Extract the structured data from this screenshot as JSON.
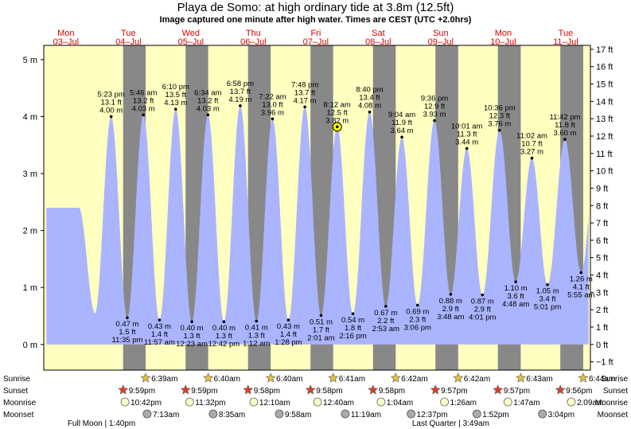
{
  "chart_data": {
    "type": "area",
    "title": "Playa de Somo: at high  ordinary tide at 3.8m (12.5ft)",
    "subtitle": "Image captured one minute after high water. Times are CEST (UTC +2.0hrs)",
    "colors": {
      "day": "#ffffc0",
      "night": "#888888",
      "tide": "#aab4ff",
      "day_label": "#e00000",
      "current_marker": "#ffff00"
    },
    "x_range_hours": [
      -8.5,
      201.5
    ],
    "y_left": {
      "unit": "m",
      "range": [
        -0.45,
        5.25
      ],
      "ticks": [
        0,
        1,
        2,
        3,
        4,
        5
      ],
      "labels": [
        "0 m",
        "1 m",
        "2 m",
        "3 m",
        "4 m",
        "5 m"
      ]
    },
    "y_right": {
      "unit": "ft",
      "ticks": [
        -1,
        0,
        1,
        2,
        3,
        4,
        5,
        6,
        7,
        8,
        9,
        10,
        11,
        12,
        13,
        14,
        15,
        16,
        17
      ],
      "labels": [
        "−1 ft",
        "0 ft",
        "1 ft",
        "2 ft",
        "3 ft",
        "4 ft",
        "5 ft",
        "6 ft",
        "7 ft",
        "8 ft",
        "9 ft",
        "10 ft",
        "11 ft",
        "12 ft",
        "13 ft",
        "14 ft",
        "15 ft",
        "16 ft",
        "17 ft"
      ]
    },
    "days": [
      {
        "name": "Mon",
        "date": "03–Jul",
        "h": 0
      },
      {
        "name": "Tue",
        "date": "04–Jul",
        "h": 24
      },
      {
        "name": "Wed",
        "date": "05–Jul",
        "h": 48
      },
      {
        "name": "Thu",
        "date": "06–Jul",
        "h": 72
      },
      {
        "name": "Fri",
        "date": "07–Jul",
        "h": 96
      },
      {
        "name": "Sat",
        "date": "08–Jul",
        "h": 120
      },
      {
        "name": "Sun",
        "date": "09–Jul",
        "h": 144
      },
      {
        "name": "Mon",
        "date": "10–Jul",
        "h": 168
      },
      {
        "name": "Tue",
        "date": "11–Jul",
        "h": 192
      }
    ],
    "tides": [
      {
        "type": "high",
        "h": 17.38,
        "time": "5:23 pm",
        "ft": "13.1 ft",
        "m": "4.00 m",
        "v": 4.0
      },
      {
        "type": "low",
        "h": 23.58,
        "time": "11:35 pm",
        "ft": "1.5 ft",
        "m": "0.47 m",
        "v": 0.47
      },
      {
        "type": "high",
        "h": 29.77,
        "time": "5:46 am",
        "ft": "13.2 ft",
        "m": "4.03 m",
        "v": 4.03
      },
      {
        "type": "low",
        "h": 35.95,
        "time": "11:57 am",
        "ft": "1.4 ft",
        "m": "0.43 m",
        "v": 0.43
      },
      {
        "type": "high",
        "h": 42.17,
        "time": "6:10 pm",
        "ft": "13.5 ft",
        "m": "4.13 m",
        "v": 4.13
      },
      {
        "type": "low",
        "h": 48.38,
        "time": "12:23 am",
        "ft": "1.3 ft",
        "m": "0.40 m",
        "v": 0.4
      },
      {
        "type": "high",
        "h": 54.57,
        "time": "6:34 am",
        "ft": "13.2 ft",
        "m": "4.03 m",
        "v": 4.03
      },
      {
        "type": "low",
        "h": 60.7,
        "time": "12:42 pm",
        "ft": "1.3 ft",
        "m": "0.40 m",
        "v": 0.4
      },
      {
        "type": "high",
        "h": 66.97,
        "time": "6:58 pm",
        "ft": "13.7 ft",
        "m": "4.19 m",
        "v": 4.19
      },
      {
        "type": "low",
        "h": 73.2,
        "time": "1:12 am",
        "ft": "1.3 ft",
        "m": "0.41 m",
        "v": 0.41
      },
      {
        "type": "high",
        "h": 79.37,
        "time": "7:22 am",
        "ft": "13.0 ft",
        "m": "3.96 m",
        "v": 3.96
      },
      {
        "type": "low",
        "h": 85.47,
        "time": "1:28 pm",
        "ft": "1.4 ft",
        "m": "0.43 m",
        "v": 0.43
      },
      {
        "type": "high",
        "h": 91.8,
        "time": "7:48 pm",
        "ft": "13.7 ft",
        "m": "4.17 m",
        "v": 4.17
      },
      {
        "type": "low",
        "h": 98.02,
        "time": "2:01 am",
        "ft": "1.7 ft",
        "m": "0.51 m",
        "v": 0.51
      },
      {
        "type": "high",
        "h": 104.2,
        "time": "8:12 am",
        "ft": "12.5 ft",
        "m": "3.82 m",
        "v": 3.82
      },
      {
        "type": "low",
        "h": 110.27,
        "time": "2:16 pm",
        "ft": "1.8 ft",
        "m": "0.54 m",
        "v": 0.54
      },
      {
        "type": "high",
        "h": 116.67,
        "time": "8:40 pm",
        "ft": "13.4 ft",
        "m": "4.08 m",
        "v": 4.08
      },
      {
        "type": "low",
        "h": 122.88,
        "time": "2:53 am",
        "ft": "2.2 ft",
        "m": "0.67 m",
        "v": 0.67
      },
      {
        "type": "high",
        "h": 129.07,
        "time": "9:04 am",
        "ft": "11.9 ft",
        "m": "3.64 m",
        "v": 3.64
      },
      {
        "type": "low",
        "h": 135.1,
        "time": "3:06 pm",
        "ft": "2.3 ft",
        "m": "0.69 m",
        "v": 0.69
      },
      {
        "type": "high",
        "h": 141.6,
        "time": "9:36 pm",
        "ft": "12.9 ft",
        "m": "3.93 m",
        "v": 3.93
      },
      {
        "type": "low",
        "h": 147.8,
        "time": "3:48 am",
        "ft": "2.9 ft",
        "m": "0.88 m",
        "v": 0.88
      },
      {
        "type": "high",
        "h": 154.02,
        "time": "10:01 am",
        "ft": "11.3 ft",
        "m": "3.44 m",
        "v": 3.44
      },
      {
        "type": "low",
        "h": 160.02,
        "time": "4:01 pm",
        "ft": "2.9 ft",
        "m": "0.87 m",
        "v": 0.87
      },
      {
        "type": "high",
        "h": 166.6,
        "time": "10:36 pm",
        "ft": "12.3 ft",
        "m": "3.76 m",
        "v": 3.76
      },
      {
        "type": "low",
        "h": 172.8,
        "time": "4:48 am",
        "ft": "3.6 ft",
        "m": "1.10 m",
        "v": 1.1
      },
      {
        "type": "high",
        "h": 179.03,
        "time": "11:02 am",
        "ft": "10.7 ft",
        "m": "3.27 m",
        "v": 3.27
      },
      {
        "type": "low",
        "h": 185.02,
        "time": "5:01 pm",
        "ft": "3.4 ft",
        "m": "1.05 m",
        "v": 1.05
      },
      {
        "type": "high",
        "h": 191.7,
        "time": "11:42 pm",
        "ft": "11.8 ft",
        "m": "3.60 m",
        "v": 3.6
      },
      {
        "type": "low",
        "h": 197.92,
        "time": "5:55 am",
        "ft": "4.1 ft",
        "m": "1.26 m",
        "v": 1.26
      }
    ],
    "current_marker": {
      "h": 104.22,
      "v": 3.82
    },
    "night_bands": [
      [
        21.98,
        30.65
      ],
      [
        45.98,
        54.67
      ],
      [
        69.97,
        78.67
      ],
      [
        93.97,
        102.68
      ],
      [
        117.97,
        126.7
      ],
      [
        141.95,
        150.7
      ],
      [
        165.95,
        174.72
      ],
      [
        189.93,
        198.73
      ]
    ],
    "astro_labels": [
      "Sunrise",
      "Sunset",
      "Moonrise",
      "Moonset"
    ],
    "sunrise": [
      {
        "h": 30.65,
        "time": "6:39am"
      },
      {
        "h": 54.67,
        "time": "6:40am"
      },
      {
        "h": 78.67,
        "time": "6:40am"
      },
      {
        "h": 102.68,
        "time": "6:41am"
      },
      {
        "h": 126.7,
        "time": "6:42am"
      },
      {
        "h": 150.7,
        "time": "6:42am"
      },
      {
        "h": 174.72,
        "time": "6:43am"
      },
      {
        "h": 198.73,
        "time": "6:44am"
      }
    ],
    "sunset": [
      {
        "h": 21.98,
        "time": "9:59pm"
      },
      {
        "h": 45.98,
        "time": "9:59pm"
      },
      {
        "h": 69.97,
        "time": "9:58pm"
      },
      {
        "h": 93.97,
        "time": "9:58pm"
      },
      {
        "h": 117.97,
        "time": "9:58pm"
      },
      {
        "h": 141.95,
        "time": "9:57pm"
      },
      {
        "h": 165.95,
        "time": "9:57pm"
      },
      {
        "h": 189.93,
        "time": "9:56pm"
      }
    ],
    "moonrise": [
      {
        "h": 22.7,
        "time": "10:42pm"
      },
      {
        "h": 47.53,
        "time": "11:32pm"
      },
      {
        "h": 72.17,
        "time": "12:10am"
      },
      {
        "h": 96.67,
        "time": "12:40am"
      },
      {
        "h": 121.07,
        "time": "1:04am"
      },
      {
        "h": 145.43,
        "time": "1:26am"
      },
      {
        "h": 169.78,
        "time": "1:47am"
      },
      {
        "h": 194.15,
        "time": "2:09am"
      }
    ],
    "moonset": [
      {
        "h": 31.22,
        "time": "7:13am"
      },
      {
        "h": 56.58,
        "time": "8:35am"
      },
      {
        "h": 81.97,
        "time": "9:58am"
      },
      {
        "h": 107.32,
        "time": "11:19am"
      },
      {
        "h": 132.62,
        "time": "12:37pm"
      },
      {
        "h": 157.87,
        "time": "1:52pm"
      },
      {
        "h": 183.07,
        "time": "3:04pm"
      }
    ],
    "moon_phases": [
      {
        "h": 13.67,
        "label": "Full Moon | 1:40pm"
      },
      {
        "h": 147.82,
        "label": "Last Quarter | 3:49am"
      }
    ]
  }
}
